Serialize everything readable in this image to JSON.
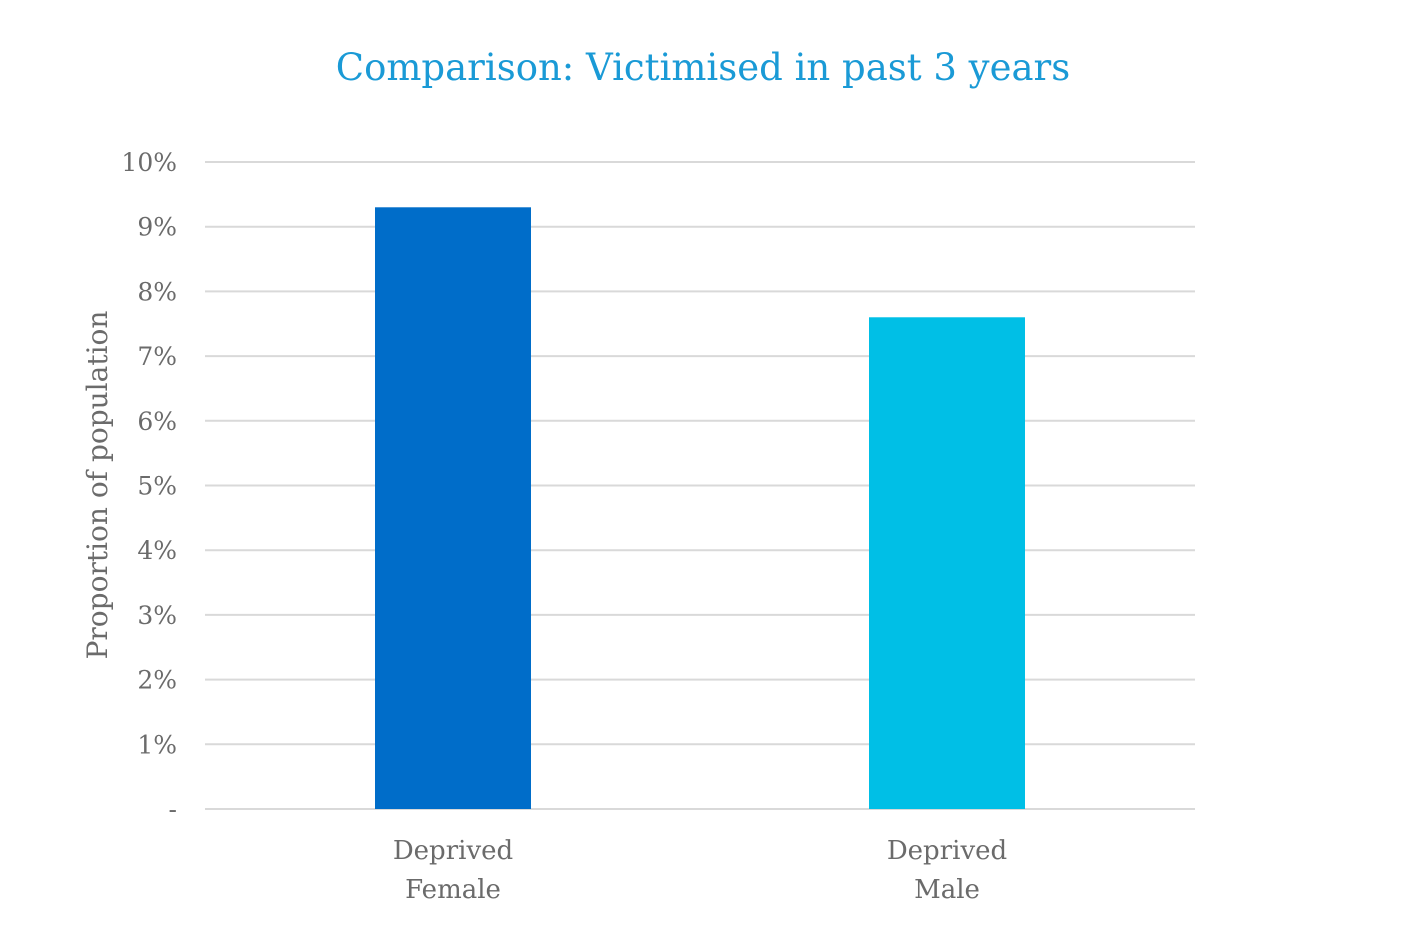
{
  "chart_data": {
    "type": "bar",
    "title": "Comparison: Victimised in past 3 years",
    "ylabel": "Proportion of population",
    "xlabel": "",
    "categories": [
      [
        "Deprived",
        "Female"
      ],
      [
        "Deprived",
        "Male"
      ]
    ],
    "values": [
      0.093,
      0.076
    ],
    "bar_colors": [
      "#006dc9",
      "#00bfe6"
    ],
    "ylim": [
      0,
      0.1
    ],
    "y_ticks": [
      {
        "value": 0.0,
        "label": "-"
      },
      {
        "value": 0.01,
        "label": "1%"
      },
      {
        "value": 0.02,
        "label": "2%"
      },
      {
        "value": 0.03,
        "label": "3%"
      },
      {
        "value": 0.04,
        "label": "4%"
      },
      {
        "value": 0.05,
        "label": "5%"
      },
      {
        "value": 0.06,
        "label": "6%"
      },
      {
        "value": 0.07,
        "label": "7%"
      },
      {
        "value": 0.08,
        "label": "8%"
      },
      {
        "value": 0.09,
        "label": "9%"
      },
      {
        "value": 0.1,
        "label": "10%"
      }
    ],
    "grid": true,
    "legend": "none",
    "title_color": "#1a9ad6",
    "text_color": "#6b6b6b",
    "grid_color": "#d9d9d9"
  }
}
